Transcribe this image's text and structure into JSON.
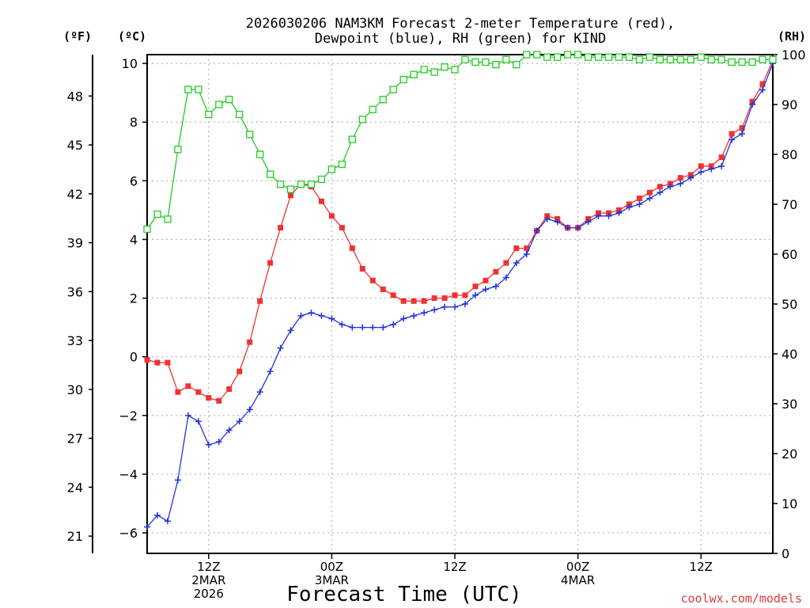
{
  "title": {
    "line1": "2026030206 NAM3KM Forecast 2-meter Temperature (red),",
    "line2": "Dewpoint (blue), RH (green) for KIND"
  },
  "units": {
    "fahrenheit": "(ºF)",
    "celsius": "(ºC)",
    "rh": "(RH)"
  },
  "credit": "coolwx.com/models",
  "colors": {
    "temperature": "#ee3333",
    "dewpoint": "#2233dd",
    "rh": "#22cc22",
    "grid": "#a8a8a8"
  },
  "chart_data": {
    "type": "line",
    "title": "2026030206 NAM3KM Forecast 2-meter Temperature (red), Dewpoint (blue), RH (green) for KIND",
    "xlabel": "Forecast Time (UTC)",
    "x_unit": "forecast hour (0 = 06Z 2 MAR 2026)",
    "xlim": [
      0,
      61
    ],
    "x_ticks": [
      {
        "x": 6,
        "lines": [
          "12Z",
          "2MAR",
          "2026"
        ]
      },
      {
        "x": 18,
        "lines": [
          "00Z",
          "3MAR"
        ]
      },
      {
        "x": 30,
        "lines": [
          "12Z"
        ]
      },
      {
        "x": 42,
        "lines": [
          "00Z",
          "4MAR"
        ]
      },
      {
        "x": 54,
        "lines": [
          "12Z"
        ]
      }
    ],
    "y_celsius": {
      "label": "(ºC)",
      "ylim": [
        -6.7,
        10.3
      ],
      "ticks": [
        -6,
        -4,
        -2,
        0,
        2,
        4,
        6,
        8,
        10
      ]
    },
    "y_fahrenheit": {
      "label": "(ºF)",
      "ticks": [
        21,
        24,
        27,
        30,
        33,
        36,
        39,
        42,
        45,
        48
      ]
    },
    "y_rh": {
      "label": "(RH)",
      "ylim": [
        0,
        100
      ],
      "ticks": [
        0,
        10,
        20,
        30,
        40,
        50,
        60,
        70,
        80,
        90,
        100
      ]
    },
    "series": [
      {
        "name": "Temperature",
        "axis": "celsius",
        "color": "#ee3333",
        "marker": "filled-square",
        "x": [
          0,
          1,
          2,
          3,
          4,
          5,
          6,
          7,
          8,
          9,
          10,
          11,
          12,
          13,
          14,
          15,
          16,
          17,
          18,
          19,
          20,
          21,
          22,
          23,
          24,
          25,
          26,
          27,
          28,
          29,
          30,
          31,
          32,
          33,
          34,
          35,
          36,
          37,
          38,
          39,
          40,
          41,
          42,
          43,
          44,
          45,
          46,
          47,
          48,
          49,
          50,
          51,
          52,
          53,
          54,
          55,
          56,
          57,
          58,
          59,
          60,
          61
        ],
        "values": [
          -0.1,
          -0.2,
          -0.2,
          -1.2,
          -1.0,
          -1.2,
          -1.4,
          -1.5,
          -1.1,
          -0.5,
          0.5,
          1.9,
          3.2,
          4.4,
          5.5,
          5.9,
          5.8,
          5.3,
          4.8,
          4.4,
          3.7,
          3.0,
          2.6,
          2.3,
          2.1,
          1.9,
          1.9,
          1.9,
          2.0,
          2.0,
          2.1,
          2.1,
          2.4,
          2.6,
          2.9,
          3.2,
          3.7,
          3.7,
          4.3,
          4.8,
          4.7,
          4.4,
          4.4,
          4.7,
          4.9,
          4.9,
          5.0,
          5.2,
          5.4,
          5.6,
          5.8,
          5.9,
          6.1,
          6.2,
          6.5,
          6.5,
          6.8,
          7.6,
          7.8,
          8.7,
          9.3,
          10.1
        ]
      },
      {
        "name": "Dewpoint",
        "axis": "celsius",
        "color": "#2233dd",
        "marker": "plus",
        "x": [
          0,
          1,
          2,
          3,
          4,
          5,
          6,
          7,
          8,
          9,
          10,
          11,
          12,
          13,
          14,
          15,
          16,
          17,
          18,
          19,
          20,
          21,
          22,
          23,
          24,
          25,
          26,
          27,
          28,
          29,
          30,
          31,
          32,
          33,
          34,
          35,
          36,
          37,
          38,
          39,
          40,
          41,
          42,
          43,
          44,
          45,
          46,
          47,
          48,
          49,
          50,
          51,
          52,
          53,
          54,
          55,
          56,
          57,
          58,
          59,
          60,
          61
        ],
        "values": [
          -5.8,
          -5.4,
          -5.6,
          -4.2,
          -2.0,
          -2.2,
          -3.0,
          -2.9,
          -2.5,
          -2.2,
          -1.8,
          -1.2,
          -0.5,
          0.3,
          0.9,
          1.4,
          1.5,
          1.4,
          1.3,
          1.1,
          1.0,
          1.0,
          1.0,
          1.0,
          1.1,
          1.3,
          1.4,
          1.5,
          1.6,
          1.7,
          1.7,
          1.8,
          2.1,
          2.3,
          2.4,
          2.7,
          3.2,
          3.5,
          4.3,
          4.7,
          4.6,
          4.4,
          4.4,
          4.6,
          4.8,
          4.8,
          4.9,
          5.1,
          5.2,
          5.4,
          5.6,
          5.8,
          5.9,
          6.1,
          6.3,
          6.4,
          6.5,
          7.4,
          7.6,
          8.6,
          9.1,
          10.0
        ]
      },
      {
        "name": "RH",
        "axis": "rh",
        "color": "#22cc22",
        "marker": "open-square",
        "x": [
          0,
          1,
          2,
          3,
          4,
          5,
          6,
          7,
          8,
          9,
          10,
          11,
          12,
          13,
          14,
          15,
          16,
          17,
          18,
          19,
          20,
          21,
          22,
          23,
          24,
          25,
          26,
          27,
          28,
          29,
          30,
          31,
          32,
          33,
          34,
          35,
          36,
          37,
          38,
          39,
          40,
          41,
          42,
          43,
          44,
          45,
          46,
          47,
          48,
          49,
          50,
          51,
          52,
          53,
          54,
          55,
          56,
          57,
          58,
          59,
          60,
          61
        ],
        "values": [
          65,
          68,
          67,
          81,
          93,
          93,
          88,
          90,
          91,
          88,
          84,
          80,
          76,
          74,
          73,
          74,
          74,
          75,
          77,
          78,
          83,
          87,
          89,
          91,
          93,
          95,
          96,
          97,
          96.5,
          97.5,
          97,
          99,
          98.5,
          98.5,
          98,
          99,
          98,
          100,
          100,
          99.5,
          99.5,
          100,
          100,
          99.5,
          99.5,
          99.5,
          99.5,
          99.5,
          99,
          99.5,
          99,
          99,
          99,
          99,
          99.5,
          99,
          99,
          98.5,
          98.5,
          98.5,
          99,
          99
        ]
      }
    ]
  }
}
